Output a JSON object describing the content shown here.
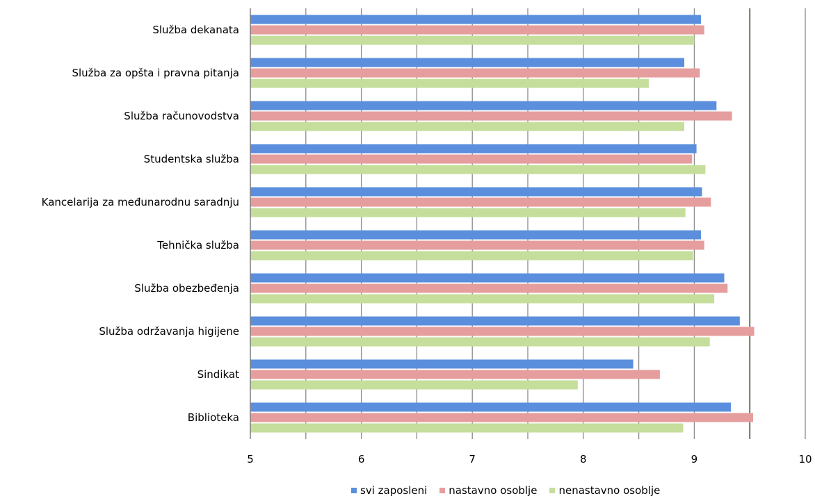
{
  "chart_data": {
    "type": "bar",
    "orientation": "horizontal",
    "categories": [
      "Služba dekanata",
      "Služba za opšta i pravna pitanja",
      "Služba računovodstva",
      "Studentska služba",
      "Kancelarija za međunarodnu saradnju",
      "Tehnička služba",
      "Služba obezbeđenja",
      "Služba održavanja higijene",
      "Sindikat",
      "Biblioteka"
    ],
    "series": [
      {
        "name": "svi zaposleni",
        "color": "#5B8FDD",
        "values": [
          9.06,
          8.91,
          9.2,
          9.02,
          9.07,
          9.06,
          9.27,
          9.41,
          8.45,
          9.33
        ]
      },
      {
        "name": "nastavno osoblje",
        "color": "#E59E9D",
        "values": [
          9.09,
          9.05,
          9.34,
          8.98,
          9.15,
          9.09,
          9.3,
          9.54,
          8.69,
          9.53
        ]
      },
      {
        "name": "nenastavno osoblje",
        "color": "#C5DE9B",
        "values": [
          9.0,
          8.59,
          8.91,
          9.1,
          8.92,
          8.99,
          9.18,
          9.14,
          7.95,
          8.9
        ]
      }
    ],
    "xlim": [
      5,
      10
    ],
    "x_ticks": [
      "5",
      "6",
      "7",
      "8",
      "9",
      "10"
    ],
    "x_gridlines": [
      5.5,
      6,
      6.5,
      7,
      7.5,
      8,
      8.5,
      9,
      9.5,
      10
    ],
    "grid": true,
    "legend_position": "bottom",
    "title": "",
    "xlabel": "",
    "ylabel": ""
  }
}
